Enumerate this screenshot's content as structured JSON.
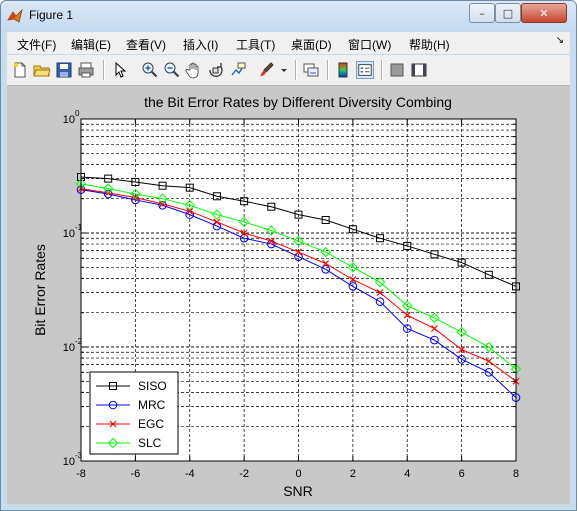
{
  "window": {
    "title": "Figure 1",
    "minimize_label": "–",
    "maximize_label": "□",
    "close_label": "✕"
  },
  "menubar": {
    "items": [
      "文件(F)",
      "编辑(E)",
      "查看(V)",
      "插入(I)",
      "工具(T)",
      "桌面(D)",
      "窗口(W)",
      "帮助(H)"
    ],
    "more_label": "↘"
  },
  "toolbar": {
    "icons": [
      "new-figure-icon",
      "open-icon",
      "save-icon",
      "print-icon",
      "arrow-pointer-icon",
      "zoom-in-icon",
      "zoom-out-icon",
      "pan-hand-icon",
      "rotate-3d-icon",
      "data-cursor-icon",
      "brush-icon",
      "brush-dropdown-icon",
      "link-plot-icon",
      "colorbar-icon",
      "legend-icon",
      "hide-plot-tools-icon",
      "show-plot-tools-icon"
    ]
  },
  "colors": {
    "SISO": "#000000",
    "MRC": "#0000ff",
    "EGC": "#ff0000",
    "SLC": "#00ff00",
    "figure_bg": "#c8c8c8"
  },
  "chart_data": {
    "type": "line",
    "title": "the Bit Error Rates by Different Diversity Combing",
    "xlabel": "SNR",
    "ylabel": "Bit Error Rates",
    "xlim": [
      -8,
      8
    ],
    "ylim": [
      0.001,
      1
    ],
    "yscale": "log",
    "grid": true,
    "legend_position": "bottom-left",
    "xticks": [
      "-8",
      "-6",
      "-4",
      "-2",
      "0",
      "2",
      "4",
      "6",
      "8"
    ],
    "yticks": [
      {
        "base": "10",
        "exp": "0"
      },
      {
        "base": "10",
        "exp": "-1"
      },
      {
        "base": "10",
        "exp": "-2"
      },
      {
        "base": "10",
        "exp": "-3"
      }
    ],
    "x": [
      -8,
      -7,
      -6,
      -5,
      -4,
      -3,
      -2,
      -1,
      0,
      1,
      2,
      3,
      4,
      5,
      6,
      7,
      8
    ],
    "series": [
      {
        "name": "SISO",
        "marker": "square",
        "values": [
          0.31,
          0.3,
          0.28,
          0.26,
          0.25,
          0.21,
          0.19,
          0.17,
          0.145,
          0.13,
          0.108,
          0.09,
          0.077,
          0.065,
          0.055,
          0.043,
          0.034
        ]
      },
      {
        "name": "MRC",
        "marker": "circle",
        "values": [
          0.24,
          0.22,
          0.195,
          0.175,
          0.145,
          0.115,
          0.09,
          0.08,
          0.062,
          0.048,
          0.034,
          0.025,
          0.0145,
          0.0115,
          0.0078,
          0.006,
          0.0036
        ]
      },
      {
        "name": "EGC",
        "marker": "x",
        "values": [
          0.245,
          0.225,
          0.205,
          0.18,
          0.155,
          0.125,
          0.1,
          0.085,
          0.068,
          0.054,
          0.039,
          0.03,
          0.019,
          0.0145,
          0.0095,
          0.0075,
          0.005
        ]
      },
      {
        "name": "SLC",
        "marker": "diamond",
        "values": [
          0.27,
          0.245,
          0.22,
          0.2,
          0.175,
          0.145,
          0.125,
          0.105,
          0.085,
          0.068,
          0.05,
          0.037,
          0.023,
          0.018,
          0.0135,
          0.01,
          0.0064
        ]
      }
    ]
  }
}
